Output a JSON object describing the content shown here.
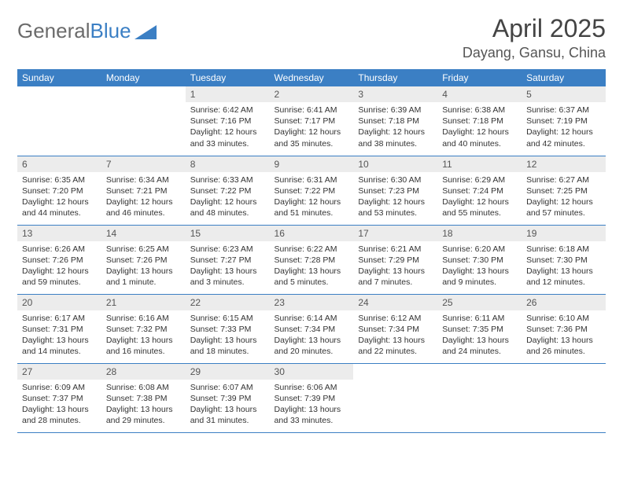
{
  "brand": {
    "part1": "General",
    "part2": "Blue"
  },
  "title": "April 2025",
  "location": "Dayang, Gansu, China",
  "colors": {
    "header_bg": "#3b7fc4",
    "header_text": "#ffffff",
    "daynum_bg": "#ececec",
    "rule": "#3b7fc4",
    "logo_gray": "#6b6b6b",
    "logo_blue": "#3b7fc4"
  },
  "day_labels": [
    "Sunday",
    "Monday",
    "Tuesday",
    "Wednesday",
    "Thursday",
    "Friday",
    "Saturday"
  ],
  "weeks": [
    [
      null,
      null,
      {
        "n": "1",
        "sr": "6:42 AM",
        "ss": "7:16 PM",
        "dl": "12 hours and 33 minutes."
      },
      {
        "n": "2",
        "sr": "6:41 AM",
        "ss": "7:17 PM",
        "dl": "12 hours and 35 minutes."
      },
      {
        "n": "3",
        "sr": "6:39 AM",
        "ss": "7:18 PM",
        "dl": "12 hours and 38 minutes."
      },
      {
        "n": "4",
        "sr": "6:38 AM",
        "ss": "7:18 PM",
        "dl": "12 hours and 40 minutes."
      },
      {
        "n": "5",
        "sr": "6:37 AM",
        "ss": "7:19 PM",
        "dl": "12 hours and 42 minutes."
      }
    ],
    [
      {
        "n": "6",
        "sr": "6:35 AM",
        "ss": "7:20 PM",
        "dl": "12 hours and 44 minutes."
      },
      {
        "n": "7",
        "sr": "6:34 AM",
        "ss": "7:21 PM",
        "dl": "12 hours and 46 minutes."
      },
      {
        "n": "8",
        "sr": "6:33 AM",
        "ss": "7:22 PM",
        "dl": "12 hours and 48 minutes."
      },
      {
        "n": "9",
        "sr": "6:31 AM",
        "ss": "7:22 PM",
        "dl": "12 hours and 51 minutes."
      },
      {
        "n": "10",
        "sr": "6:30 AM",
        "ss": "7:23 PM",
        "dl": "12 hours and 53 minutes."
      },
      {
        "n": "11",
        "sr": "6:29 AM",
        "ss": "7:24 PM",
        "dl": "12 hours and 55 minutes."
      },
      {
        "n": "12",
        "sr": "6:27 AM",
        "ss": "7:25 PM",
        "dl": "12 hours and 57 minutes."
      }
    ],
    [
      {
        "n": "13",
        "sr": "6:26 AM",
        "ss": "7:26 PM",
        "dl": "12 hours and 59 minutes."
      },
      {
        "n": "14",
        "sr": "6:25 AM",
        "ss": "7:26 PM",
        "dl": "13 hours and 1 minute."
      },
      {
        "n": "15",
        "sr": "6:23 AM",
        "ss": "7:27 PM",
        "dl": "13 hours and 3 minutes."
      },
      {
        "n": "16",
        "sr": "6:22 AM",
        "ss": "7:28 PM",
        "dl": "13 hours and 5 minutes."
      },
      {
        "n": "17",
        "sr": "6:21 AM",
        "ss": "7:29 PM",
        "dl": "13 hours and 7 minutes."
      },
      {
        "n": "18",
        "sr": "6:20 AM",
        "ss": "7:30 PM",
        "dl": "13 hours and 9 minutes."
      },
      {
        "n": "19",
        "sr": "6:18 AM",
        "ss": "7:30 PM",
        "dl": "13 hours and 12 minutes."
      }
    ],
    [
      {
        "n": "20",
        "sr": "6:17 AM",
        "ss": "7:31 PM",
        "dl": "13 hours and 14 minutes."
      },
      {
        "n": "21",
        "sr": "6:16 AM",
        "ss": "7:32 PM",
        "dl": "13 hours and 16 minutes."
      },
      {
        "n": "22",
        "sr": "6:15 AM",
        "ss": "7:33 PM",
        "dl": "13 hours and 18 minutes."
      },
      {
        "n": "23",
        "sr": "6:14 AM",
        "ss": "7:34 PM",
        "dl": "13 hours and 20 minutes."
      },
      {
        "n": "24",
        "sr": "6:12 AM",
        "ss": "7:34 PM",
        "dl": "13 hours and 22 minutes."
      },
      {
        "n": "25",
        "sr": "6:11 AM",
        "ss": "7:35 PM",
        "dl": "13 hours and 24 minutes."
      },
      {
        "n": "26",
        "sr": "6:10 AM",
        "ss": "7:36 PM",
        "dl": "13 hours and 26 minutes."
      }
    ],
    [
      {
        "n": "27",
        "sr": "6:09 AM",
        "ss": "7:37 PM",
        "dl": "13 hours and 28 minutes."
      },
      {
        "n": "28",
        "sr": "6:08 AM",
        "ss": "7:38 PM",
        "dl": "13 hours and 29 minutes."
      },
      {
        "n": "29",
        "sr": "6:07 AM",
        "ss": "7:39 PM",
        "dl": "13 hours and 31 minutes."
      },
      {
        "n": "30",
        "sr": "6:06 AM",
        "ss": "7:39 PM",
        "dl": "13 hours and 33 minutes."
      },
      null,
      null,
      null
    ]
  ],
  "labels": {
    "sunrise": "Sunrise:",
    "sunset": "Sunset:",
    "daylight": "Daylight:"
  }
}
